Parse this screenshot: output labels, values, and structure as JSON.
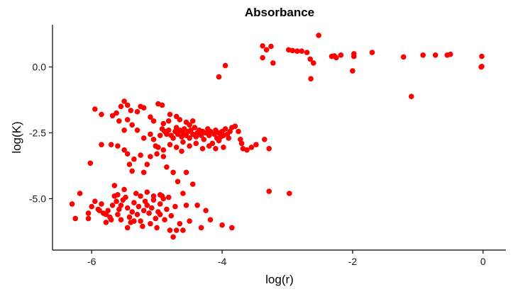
{
  "chart_data": {
    "type": "scatter",
    "title": "Absorbance",
    "xlabel": "log(r)",
    "ylabel": "log(K)",
    "xlim": [
      -6.6,
      0.35
    ],
    "ylim": [
      -6.95,
      1.6
    ],
    "xticks": [
      -6,
      -4,
      -2,
      0
    ],
    "xtick_labels": [
      "-6",
      "-4",
      "-2",
      "0"
    ],
    "yticks": [
      0,
      -2.5,
      -5
    ],
    "ytick_labels": [
      "0.0",
      "-2.5",
      "-5.0"
    ],
    "grid": false,
    "legend": "none",
    "marker_color": "#ff0000",
    "points": [
      [
        -2.52,
        1.2
      ],
      [
        -3.38,
        0.8
      ],
      [
        -3.25,
        0.78
      ],
      [
        -3.32,
        0.65
      ],
      [
        -3.38,
        0.35
      ],
      [
        -3.22,
        0.15
      ],
      [
        -2.98,
        0.65
      ],
      [
        -2.92,
        0.62
      ],
      [
        -2.85,
        0.6
      ],
      [
        -2.78,
        0.6
      ],
      [
        -2.7,
        0.55
      ],
      [
        -2.65,
        0.3
      ],
      [
        -2.6,
        0.15
      ],
      [
        -2.64,
        -0.45
      ],
      [
        -2.32,
        0.4
      ],
      [
        -2.28,
        0.42
      ],
      [
        -2.25,
        0.35
      ],
      [
        -2.18,
        0.45
      ],
      [
        -1.98,
        0.5
      ],
      [
        -1.98,
        0.4
      ],
      [
        -2.0,
        -0.15
      ],
      [
        -1.7,
        0.55
      ],
      [
        -1.22,
        0.38
      ],
      [
        -0.92,
        0.45
      ],
      [
        -0.73,
        0.45
      ],
      [
        -0.55,
        0.45
      ],
      [
        -0.5,
        0.48
      ],
      [
        -0.02,
        0.4
      ],
      [
        -0.02,
        0.02
      ],
      [
        -0.03,
        0.0
      ],
      [
        -1.1,
        -1.12
      ],
      [
        -3.95,
        0.05
      ],
      [
        -4.05,
        -0.38
      ],
      [
        -5.95,
        -1.6
      ],
      [
        -5.85,
        -1.8
      ],
      [
        -5.62,
        -1.75
      ],
      [
        -5.55,
        -1.5
      ],
      [
        -5.5,
        -1.3
      ],
      [
        -5.45,
        -1.45
      ],
      [
        -5.4,
        -1.65
      ],
      [
        -5.3,
        -1.7
      ],
      [
        -5.25,
        -1.5
      ],
      [
        -5.2,
        -1.55
      ],
      [
        -5.1,
        -1.9
      ],
      [
        -5.05,
        -2.05
      ],
      [
        -4.98,
        -1.4
      ],
      [
        -4.92,
        -1.45
      ],
      [
        -4.8,
        -1.8
      ],
      [
        -5.68,
        -1.85
      ],
      [
        -5.58,
        -2.05
      ],
      [
        -5.5,
        -2.4
      ],
      [
        -5.45,
        -2.0
      ],
      [
        -5.38,
        -2.2
      ],
      [
        -5.3,
        -2.4
      ],
      [
        -5.2,
        -2.7
      ],
      [
        -5.1,
        -2.55
      ],
      [
        -5.05,
        -2.75
      ],
      [
        -5.02,
        -3.0
      ],
      [
        -4.98,
        -3.05
      ],
      [
        -4.95,
        -2.6
      ],
      [
        -4.92,
        -2.35
      ],
      [
        -4.88,
        -2.45
      ],
      [
        -4.85,
        -2.55
      ],
      [
        -4.82,
        -2.4
      ],
      [
        -4.78,
        -2.6
      ],
      [
        -4.75,
        -2.7
      ],
      [
        -4.72,
        -2.45
      ],
      [
        -4.7,
        -2.3
      ],
      [
        -4.68,
        -2.55
      ],
      [
        -4.65,
        -2.4
      ],
      [
        -4.62,
        -2.65
      ],
      [
        -4.6,
        -2.5
      ],
      [
        -4.58,
        -2.35
      ],
      [
        -4.55,
        -2.6
      ],
      [
        -4.52,
        -2.45
      ],
      [
        -4.5,
        -2.7
      ],
      [
        -4.48,
        -2.4
      ],
      [
        -4.45,
        -2.55
      ],
      [
        -4.42,
        -2.3
      ],
      [
        -4.4,
        -2.65
      ],
      [
        -4.38,
        -2.5
      ],
      [
        -4.35,
        -2.4
      ],
      [
        -4.32,
        -2.6
      ],
      [
        -4.3,
        -2.45
      ],
      [
        -4.28,
        -2.75
      ],
      [
        -4.25,
        -2.5
      ],
      [
        -4.22,
        -2.35
      ],
      [
        -4.2,
        -2.6
      ],
      [
        -4.18,
        -2.45
      ],
      [
        -4.15,
        -2.9
      ],
      [
        -4.12,
        -2.55
      ],
      [
        -4.1,
        -2.4
      ],
      [
        -4.08,
        -2.7
      ],
      [
        -4.05,
        -2.5
      ],
      [
        -4.02,
        -2.65
      ],
      [
        -4.0,
        -2.45
      ],
      [
        -3.98,
        -2.6
      ],
      [
        -3.95,
        -2.35
      ],
      [
        -3.92,
        -2.55
      ],
      [
        -3.9,
        -2.7
      ],
      [
        -3.88,
        -2.45
      ],
      [
        -3.85,
        -2.3
      ],
      [
        -3.8,
        -2.25
      ],
      [
        -3.75,
        -2.45
      ],
      [
        -3.72,
        -2.75
      ],
      [
        -3.7,
        -2.9
      ],
      [
        -3.68,
        -3.1
      ],
      [
        -3.62,
        -3.15
      ],
      [
        -3.55,
        -3.05
      ],
      [
        -3.48,
        -2.95
      ],
      [
        -3.35,
        -2.75
      ],
      [
        -3.28,
        -3.1
      ],
      [
        -3.28,
        -4.72
      ],
      [
        -2.97,
        -4.8
      ],
      [
        -3.98,
        -3.05
      ],
      [
        -4.05,
        -2.8
      ],
      [
        -4.1,
        -3.1
      ],
      [
        -4.2,
        -3.0
      ],
      [
        -4.3,
        -3.1
      ],
      [
        -4.4,
        -2.9
      ],
      [
        -4.5,
        -3.0
      ],
      [
        -4.6,
        -2.85
      ],
      [
        -4.7,
        -3.05
      ],
      [
        -4.8,
        -2.95
      ],
      [
        -4.9,
        -3.15
      ],
      [
        -5.0,
        -3.3
      ],
      [
        -5.1,
        -3.4
      ],
      [
        -5.15,
        -3.7
      ],
      [
        -5.2,
        -4.0
      ],
      [
        -5.25,
        -3.35
      ],
      [
        -5.35,
        -3.5
      ],
      [
        -5.45,
        -3.3
      ],
      [
        -5.5,
        -3.15
      ],
      [
        -5.6,
        -3.0
      ],
      [
        -5.7,
        -2.95
      ],
      [
        -5.85,
        -2.95
      ],
      [
        -6.02,
        -3.65
      ],
      [
        -5.42,
        -3.7
      ],
      [
        -5.38,
        -3.95
      ],
      [
        -4.9,
        -3.4
      ],
      [
        -4.85,
        -3.8
      ],
      [
        -4.75,
        -4.0
      ],
      [
        -4.68,
        -4.35
      ],
      [
        -4.62,
        -3.2
      ],
      [
        -4.55,
        -2.1
      ],
      [
        -4.5,
        -2.2
      ],
      [
        -4.45,
        -2.05
      ],
      [
        -4.65,
        -2.0
      ],
      [
        -4.7,
        -1.88
      ],
      [
        -4.82,
        -2.05
      ],
      [
        -4.9,
        -2.15
      ],
      [
        -6.3,
        -5.2
      ],
      [
        -6.25,
        -5.75
      ],
      [
        -6.18,
        -4.8
      ],
      [
        -6.05,
        -5.75
      ],
      [
        -6.0,
        -5.3
      ],
      [
        -5.95,
        -5.1
      ],
      [
        -5.9,
        -5.4
      ],
      [
        -5.85,
        -5.2
      ],
      [
        -5.82,
        -5.55
      ],
      [
        -5.78,
        -5.9
      ],
      [
        -5.75,
        -5.45
      ],
      [
        -5.72,
        -5.7
      ],
      [
        -5.68,
        -5.25
      ],
      [
        -5.65,
        -4.9
      ],
      [
        -5.62,
        -5.1
      ],
      [
        -5.6,
        -5.6
      ],
      [
        -5.58,
        -5.4
      ],
      [
        -5.55,
        -5.8
      ],
      [
        -5.52,
        -5.05
      ],
      [
        -5.5,
        -4.65
      ],
      [
        -5.48,
        -4.95
      ],
      [
        -5.45,
        -5.35
      ],
      [
        -5.42,
        -5.7
      ],
      [
        -5.4,
        -5.9
      ],
      [
        -5.38,
        -5.5
      ],
      [
        -5.35,
        -5.15
      ],
      [
        -5.32,
        -4.8
      ],
      [
        -5.3,
        -5.6
      ],
      [
        -5.28,
        -5.3
      ],
      [
        -5.25,
        -5.85
      ],
      [
        -5.22,
        -6.05
      ],
      [
        -5.2,
        -5.45
      ],
      [
        -5.18,
        -5.1
      ],
      [
        -5.15,
        -4.75
      ],
      [
        -5.12,
        -5.55
      ],
      [
        -5.1,
        -5.95
      ],
      [
        -5.08,
        -5.35
      ],
      [
        -5.05,
        -5.05
      ],
      [
        -5.02,
        -5.75
      ],
      [
        -5.0,
        -6.1
      ],
      [
        -4.98,
        -5.5
      ],
      [
        -4.95,
        -5.2
      ],
      [
        -4.92,
        -4.9
      ],
      [
        -4.88,
        -5.8
      ],
      [
        -4.85,
        -5.4
      ],
      [
        -4.82,
        -4.95
      ],
      [
        -4.8,
        -6.2
      ],
      [
        -4.78,
        -5.65
      ],
      [
        -4.75,
        -6.45
      ],
      [
        -4.72,
        -5.3
      ],
      [
        -4.7,
        -6.2
      ],
      [
        -4.65,
        -5.95
      ],
      [
        -4.6,
        -6.2
      ],
      [
        -4.55,
        -5.25
      ],
      [
        -4.5,
        -5.85
      ],
      [
        -4.45,
        -4.45
      ],
      [
        -4.38,
        -5.25
      ],
      [
        -4.32,
        -6.1
      ],
      [
        -4.25,
        -5.45
      ],
      [
        -4.18,
        -5.8
      ],
      [
        -4.0,
        -6.0
      ],
      [
        -3.85,
        -6.1
      ],
      [
        -5.88,
        -5.45
      ],
      [
        -5.78,
        -5.6
      ],
      [
        -5.7,
        -5.8
      ],
      [
        -5.6,
        -4.85
      ],
      [
        -5.55,
        -5.25
      ],
      [
        -5.45,
        -6.1
      ],
      [
        -5.35,
        -5.85
      ],
      [
        -5.25,
        -4.9
      ],
      [
        -5.15,
        -5.25
      ],
      [
        -5.05,
        -4.9
      ],
      [
        -4.95,
        -5.6
      ],
      [
        -4.9,
        -5.0
      ],
      [
        -4.6,
        -4.8
      ],
      [
        -4.55,
        -4.0
      ],
      [
        -4.95,
        -4.85
      ],
      [
        -5.65,
        -4.5
      ],
      [
        -6.05,
        -5.55
      ]
    ]
  }
}
